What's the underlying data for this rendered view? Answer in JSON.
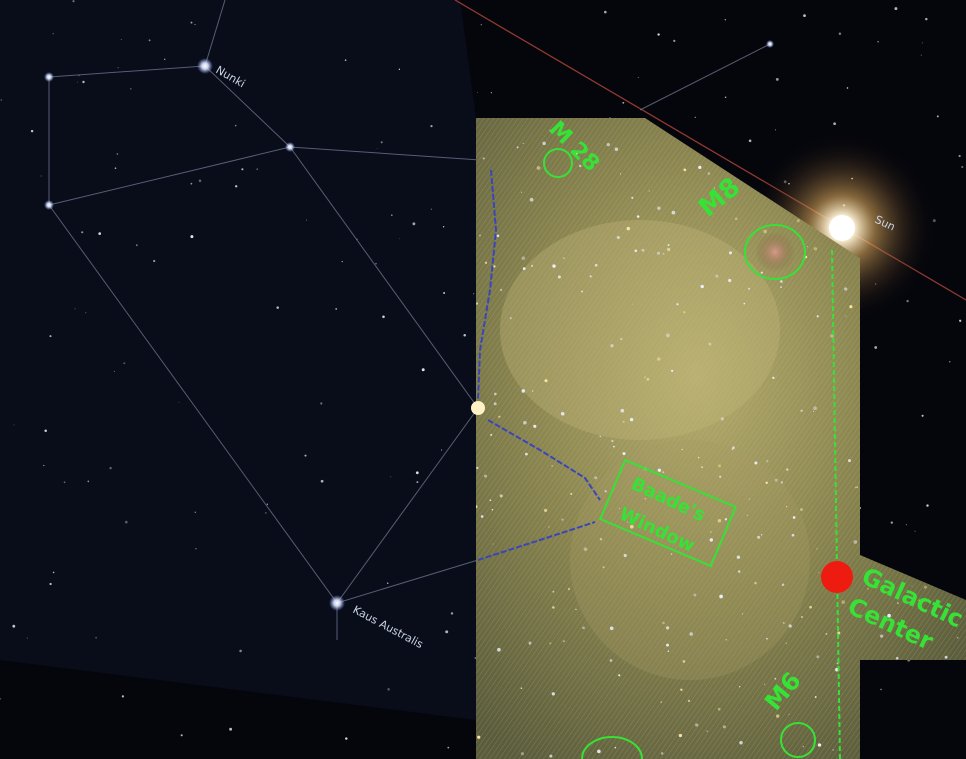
{
  "star_labels": {
    "nunki": "Nunki",
    "kaus_australis": "Kaus Australis",
    "sun": "Sun"
  },
  "overlay_labels": {
    "m28": "M 28",
    "m8": "M8",
    "baade_window_line1": "Baade's",
    "baade_window_line2": "Window",
    "galactic_line1": "Galactic",
    "galactic_line2": "Center",
    "m6": "M6"
  },
  "colors": {
    "sky": "#05060c",
    "constellation_line": "#6f7a93",
    "ecliptic_line": "#b5463a",
    "overlay_green": "#36e236",
    "overlay_blue": "#3a46b8",
    "galactic_center_marker": "#ee1c10",
    "milky_way": "#8f8a52"
  }
}
